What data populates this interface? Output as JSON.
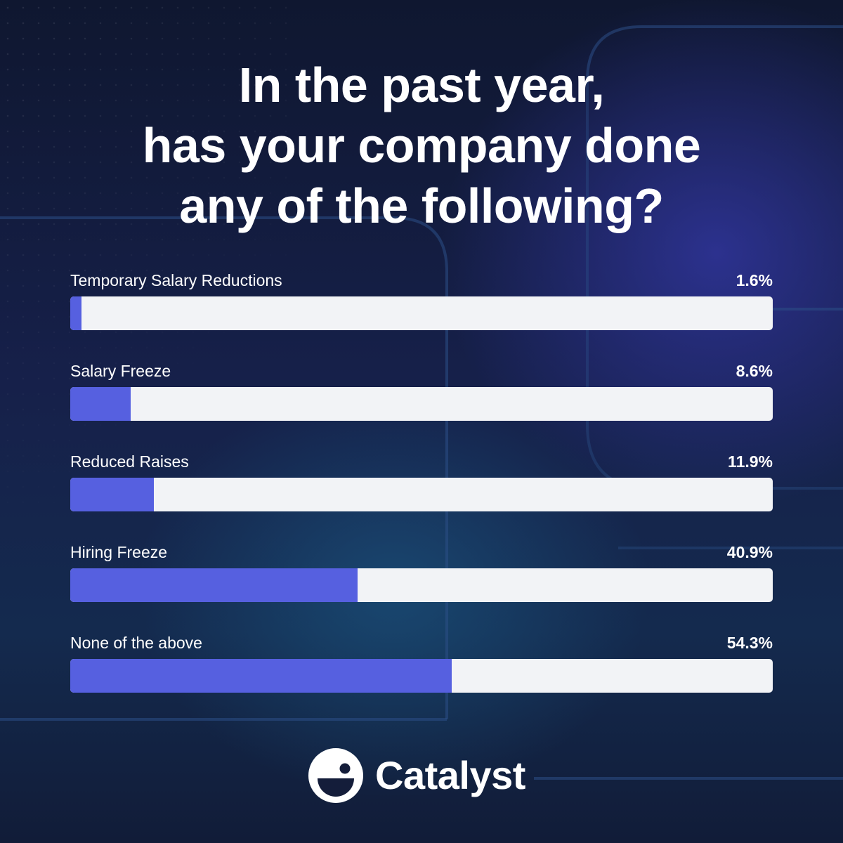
{
  "title_lines": [
    "In the past year,",
    "has your company done",
    "any of the following?"
  ],
  "chart_data": {
    "type": "bar",
    "orientation": "horizontal",
    "xlim": [
      0,
      100
    ],
    "categories": [
      "Temporary Salary Reductions",
      "Salary Freeze",
      "Reduced Raises",
      "Hiring Freeze",
      "None of the above"
    ],
    "values": [
      1.6,
      8.6,
      11.9,
      40.9,
      54.3
    ],
    "value_labels": [
      "1.6%",
      "8.6%",
      "11.9%",
      "40.9%",
      "54.3%"
    ],
    "colors": {
      "fill": "#5660e0",
      "track": "#f2f3f6"
    }
  },
  "logo": {
    "text": "Catalyst",
    "icon": "catalyst-face-icon"
  }
}
